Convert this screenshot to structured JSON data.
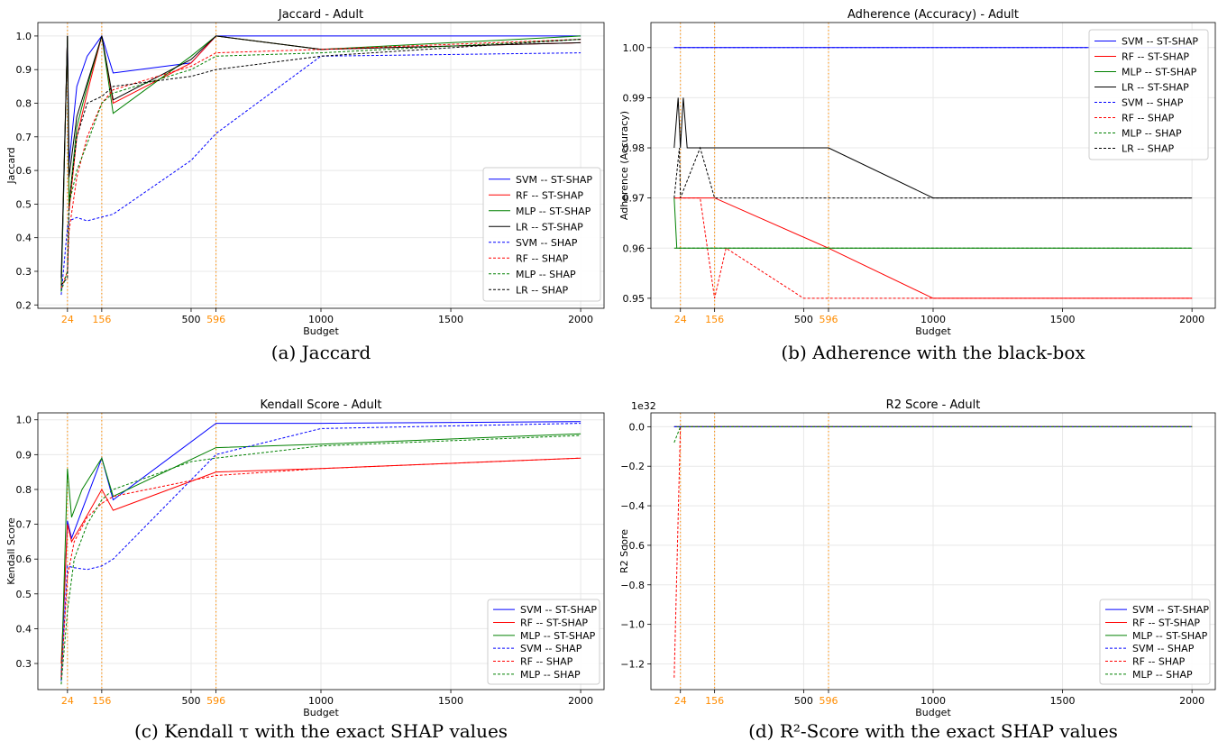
{
  "colors": {
    "SVM": "#0000ff",
    "RF": "#ff0000",
    "MLP": "#008000",
    "LR": "#000000",
    "markers": "#ff8c00",
    "grid": "#e8e8e8"
  },
  "chart_data": [
    {
      "type": "line",
      "title": "Jaccard - Adult",
      "xlabel": "Budget",
      "ylabel": "Jaccard",
      "caption": "(a) Jaccard",
      "xlim": [
        -90,
        2090
      ],
      "ylim": [
        0.19,
        1.04
      ],
      "xticks": [
        24,
        156,
        500,
        596,
        1000,
        1500,
        2000
      ],
      "yticks": [
        0.2,
        0.3,
        0.4,
        0.5,
        0.6,
        0.7,
        0.8,
        0.9,
        1.0
      ],
      "ytick_labels": [
        "0.2",
        "0.3",
        "0.4",
        "0.5",
        "0.6",
        "0.7",
        "0.8",
        "0.9",
        "1.0"
      ],
      "highlighted_budgets": [
        24,
        156,
        596
      ],
      "grid": true,
      "legend_position": "bottom-right",
      "series": [
        {
          "name": "SVM -- ST-SHAP",
          "model": "SVM",
          "dash": false,
          "x": [
            0,
            24,
            30,
            60,
            100,
            156,
            200,
            500,
            596,
            1000,
            2000
          ],
          "y": [
            0.24,
            1.0,
            0.62,
            0.85,
            0.94,
            1.0,
            0.89,
            0.92,
            1.0,
            1.0,
            1.0
          ]
        },
        {
          "name": "RF -- ST-SHAP",
          "model": "RF",
          "dash": false,
          "x": [
            0,
            24,
            30,
            60,
            100,
            156,
            200,
            500,
            596,
            1000,
            2000
          ],
          "y": [
            0.26,
            1.0,
            0.48,
            0.7,
            0.83,
            1.0,
            0.8,
            0.92,
            1.0,
            0.96,
            0.98
          ]
        },
        {
          "name": "MLP -- ST-SHAP",
          "model": "MLP",
          "dash": false,
          "x": [
            0,
            24,
            30,
            60,
            100,
            156,
            200,
            500,
            596,
            1000,
            2000
          ],
          "y": [
            0.24,
            1.0,
            0.5,
            0.73,
            0.85,
            1.0,
            0.77,
            0.94,
            1.0,
            0.96,
            1.0
          ]
        },
        {
          "name": "LR -- ST-SHAP",
          "model": "LR",
          "dash": false,
          "x": [
            0,
            24,
            30,
            60,
            100,
            156,
            200,
            500,
            596,
            1000,
            2000
          ],
          "y": [
            0.28,
            1.0,
            0.58,
            0.76,
            0.86,
            1.0,
            0.81,
            0.93,
            1.0,
            0.96,
            0.98
          ]
        },
        {
          "name": "SVM -- SHAP",
          "model": "SVM",
          "dash": true,
          "x": [
            0,
            24,
            30,
            60,
            100,
            200,
            500,
            596,
            1000,
            2000
          ],
          "y": [
            0.23,
            0.43,
            0.45,
            0.46,
            0.45,
            0.47,
            0.63,
            0.71,
            0.94,
            0.95
          ]
        },
        {
          "name": "RF -- SHAP",
          "model": "RF",
          "dash": false,
          "dashed": true,
          "x": [
            0,
            24,
            30,
            60,
            100,
            156,
            200,
            500,
            596,
            1000,
            2000
          ],
          "y": [
            0.25,
            0.3,
            0.42,
            0.58,
            0.7,
            0.8,
            0.84,
            0.91,
            0.95,
            0.96,
            0.99
          ]
        },
        {
          "name": "MLP -- SHAP",
          "model": "MLP",
          "dash": true,
          "x": [
            0,
            24,
            30,
            60,
            100,
            156,
            200,
            500,
            596,
            1000,
            2000
          ],
          "y": [
            0.24,
            0.3,
            0.5,
            0.6,
            0.68,
            0.8,
            0.83,
            0.9,
            0.94,
            0.95,
            0.99
          ]
        },
        {
          "name": "LR -- SHAP",
          "model": "LR",
          "dash": true,
          "x": [
            0,
            24,
            30,
            60,
            100,
            156,
            200,
            500,
            596,
            1000,
            2000
          ],
          "y": [
            0.26,
            0.28,
            0.5,
            0.7,
            0.8,
            0.82,
            0.85,
            0.88,
            0.9,
            0.94,
            0.99
          ]
        }
      ]
    },
    {
      "type": "line",
      "title": "Adherence (Accuracy) - Adult",
      "xlabel": "Budget",
      "ylabel": "Adherence (Accuracy)",
      "caption": "(b) Adherence with the black-box",
      "xlim": [
        -90,
        2090
      ],
      "ylim": [
        0.948,
        1.005
      ],
      "xticks": [
        24,
        156,
        500,
        596,
        1000,
        1500,
        2000
      ],
      "yticks": [
        0.95,
        0.96,
        0.97,
        0.98,
        0.99,
        1.0
      ],
      "ytick_labels": [
        "0.95",
        "0.96",
        "0.97",
        "0.98",
        "0.99",
        "1.00"
      ],
      "highlighted_budgets": [
        24,
        156,
        596
      ],
      "grid": true,
      "legend_position": "top-right",
      "series": [
        {
          "name": "SVM -- ST-SHAP",
          "model": "SVM",
          "dash": false,
          "x": [
            0,
            24,
            2000
          ],
          "y": [
            1.0,
            1.0,
            1.0
          ]
        },
        {
          "name": "RF -- ST-SHAP",
          "model": "RF",
          "dash": false,
          "x": [
            0,
            24,
            156,
            596,
            1000,
            2000
          ],
          "y": [
            0.97,
            0.97,
            0.97,
            0.96,
            0.95,
            0.95
          ]
        },
        {
          "name": "MLP -- ST-SHAP",
          "model": "MLP",
          "dash": false,
          "x": [
            0,
            10,
            24,
            2000
          ],
          "y": [
            0.97,
            0.96,
            0.96,
            0.96
          ]
        },
        {
          "name": "LR -- ST-SHAP",
          "model": "LR",
          "dash": false,
          "x": [
            0,
            15,
            24,
            35,
            50,
            156,
            596,
            1000,
            2000
          ],
          "y": [
            0.98,
            0.99,
            0.98,
            0.99,
            0.98,
            0.98,
            0.98,
            0.97,
            0.97
          ]
        },
        {
          "name": "SVM -- SHAP",
          "model": "SVM",
          "dash": true,
          "x": [
            0,
            24,
            2000
          ],
          "y": [
            1.0,
            1.0,
            1.0
          ]
        },
        {
          "name": "RF -- SHAP",
          "model": "RF",
          "dash": true,
          "x": [
            0,
            24,
            100,
            156,
            200,
            500,
            2000
          ],
          "y": [
            0.97,
            0.97,
            0.97,
            0.95,
            0.96,
            0.95,
            0.95
          ]
        },
        {
          "name": "MLP -- SHAP",
          "model": "MLP",
          "dash": true,
          "x": [
            0,
            24,
            2000
          ],
          "y": [
            0.96,
            0.96,
            0.96
          ]
        },
        {
          "name": "LR -- SHAP",
          "model": "LR",
          "dash": true,
          "x": [
            0,
            20,
            24,
            100,
            156,
            2000
          ],
          "y": [
            0.97,
            0.98,
            0.97,
            0.98,
            0.97,
            0.97
          ]
        }
      ]
    },
    {
      "type": "line",
      "title": "Kendall Score - Adult",
      "xlabel": "Budget",
      "ylabel": "Kendall Score",
      "caption": "(c) Kendall τ with the exact SHAP values",
      "xlim": [
        -90,
        2090
      ],
      "ylim": [
        0.225,
        1.02
      ],
      "xticks": [
        24,
        156,
        500,
        596,
        1000,
        1500,
        2000
      ],
      "yticks": [
        0.3,
        0.4,
        0.5,
        0.6,
        0.7,
        0.8,
        0.9,
        1.0
      ],
      "ytick_labels": [
        "0.3",
        "0.4",
        "0.5",
        "0.6",
        "0.7",
        "0.8",
        "0.9",
        "1.0"
      ],
      "highlighted_budgets": [
        24,
        156,
        596
      ],
      "grid": true,
      "legend_position": "bottom-right",
      "series": [
        {
          "name": "SVM -- ST-SHAP",
          "model": "SVM",
          "dash": false,
          "x": [
            0,
            24,
            40,
            80,
            156,
            200,
            596,
            1000,
            2000
          ],
          "y": [
            0.26,
            0.71,
            0.66,
            0.74,
            0.89,
            0.77,
            0.99,
            0.99,
            0.995
          ]
        },
        {
          "name": "RF -- ST-SHAP",
          "model": "RF",
          "dash": false,
          "x": [
            0,
            24,
            40,
            80,
            156,
            200,
            596,
            1000,
            2000
          ],
          "y": [
            0.3,
            0.7,
            0.65,
            0.7,
            0.8,
            0.74,
            0.85,
            0.86,
            0.89
          ]
        },
        {
          "name": "MLP -- ST-SHAP",
          "model": "MLP",
          "dash": false,
          "x": [
            0,
            24,
            40,
            80,
            156,
            200,
            596,
            1000,
            2000
          ],
          "y": [
            0.25,
            0.86,
            0.72,
            0.8,
            0.89,
            0.78,
            0.92,
            0.93,
            0.96
          ]
        },
        {
          "name": "SVM -- SHAP",
          "model": "SVM",
          "dash": true,
          "x": [
            0,
            24,
            50,
            100,
            156,
            200,
            596,
            1000,
            2000
          ],
          "y": [
            0.25,
            0.58,
            0.575,
            0.57,
            0.58,
            0.6,
            0.9,
            0.975,
            0.99
          ]
        },
        {
          "name": "RF -- SHAP",
          "model": "RF",
          "dash": true,
          "x": [
            0,
            24,
            50,
            100,
            156,
            200,
            596,
            1000,
            2000
          ],
          "y": [
            0.26,
            0.55,
            0.65,
            0.72,
            0.76,
            0.78,
            0.84,
            0.86,
            0.89
          ]
        },
        {
          "name": "MLP -- SHAP",
          "model": "MLP",
          "dash": true,
          "x": [
            0,
            24,
            50,
            100,
            156,
            200,
            500,
            596,
            1000,
            2000
          ],
          "y": [
            0.24,
            0.45,
            0.6,
            0.7,
            0.77,
            0.8,
            0.88,
            0.89,
            0.925,
            0.955
          ]
        }
      ]
    },
    {
      "type": "line",
      "title": "R2 Score - Adult",
      "xlabel": "Budget",
      "ylabel": "R2 Score",
      "caption": "(d) R²-Score with the exact SHAP values",
      "y_multiplier": "1e32",
      "xlim": [
        -90,
        2090
      ],
      "ylim": [
        -1.33,
        0.07
      ],
      "xticks": [
        24,
        156,
        500,
        596,
        1000,
        1500,
        2000
      ],
      "yticks": [
        -1.2,
        -1.0,
        -0.8,
        -0.6,
        -0.4,
        -0.2,
        0.0
      ],
      "ytick_labels": [
        "−1.2",
        "−1.0",
        "−0.8",
        "−0.6",
        "−0.4",
        "−0.2",
        "0.0"
      ],
      "highlighted_budgets": [
        24,
        156,
        596
      ],
      "grid": true,
      "legend_position": "bottom-right",
      "series": [
        {
          "name": "SVM -- ST-SHAP",
          "model": "SVM",
          "dash": false,
          "x": [
            0,
            24,
            2000
          ],
          "y": [
            0,
            0,
            0
          ]
        },
        {
          "name": "RF -- ST-SHAP",
          "model": "RF",
          "dash": false,
          "x": [
            0,
            24,
            2000
          ],
          "y": [
            0,
            0,
            0
          ]
        },
        {
          "name": "MLP -- ST-SHAP",
          "model": "MLP",
          "dash": false,
          "x": [
            0,
            24,
            2000
          ],
          "y": [
            0,
            0,
            0
          ]
        },
        {
          "name": "SVM -- SHAP",
          "model": "SVM",
          "dash": true,
          "x": [
            0,
            24,
            2000
          ],
          "y": [
            0,
            0,
            0
          ]
        },
        {
          "name": "RF -- SHAP",
          "model": "RF",
          "dash": true,
          "x": [
            0,
            24,
            2000
          ],
          "y": [
            -1.27,
            0,
            0
          ]
        },
        {
          "name": "MLP -- SHAP",
          "model": "MLP",
          "dash": true,
          "x": [
            0,
            24,
            2000
          ],
          "y": [
            -0.08,
            0,
            0
          ]
        }
      ]
    }
  ]
}
